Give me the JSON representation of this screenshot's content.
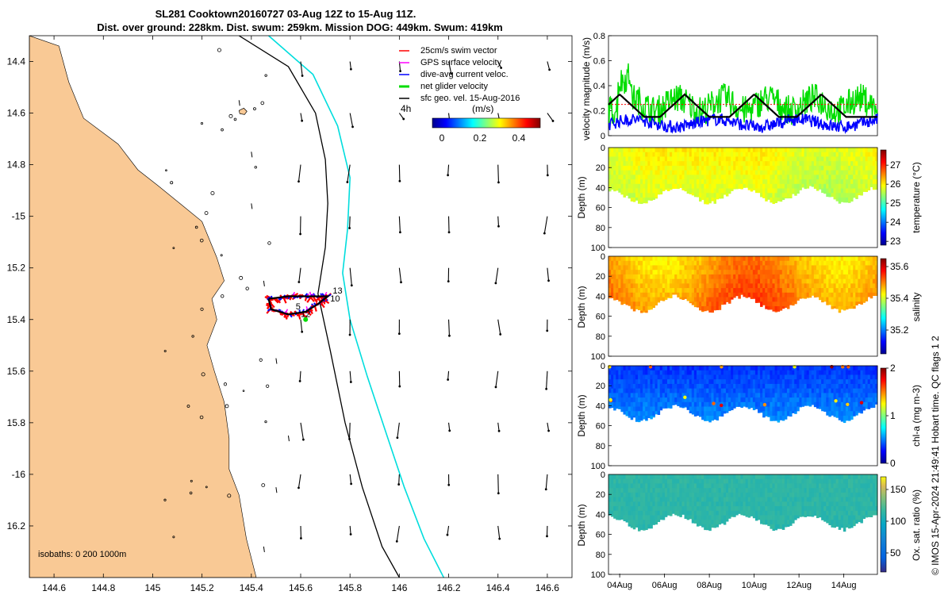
{
  "title": {
    "line1": "SL281 Cooktown20160727 03-Aug 12Z to 15-Aug 11Z.",
    "line2": "Dist. over ground: 228km. Dist. swum: 259km. Mission DOG: 449km. Swum: 419km"
  },
  "credit": "© IMOS 15-Apr-2024 21:49:41 Hobart time. QC flags 1  2",
  "colors": {
    "land": "#f9c995",
    "swim": "#ff0000",
    "gps": "#ff00ff",
    "current": "#0000ff",
    "net": "#00dd00",
    "isobath200": "#000000",
    "isobath1000": "#00dddd",
    "track": "#000000"
  },
  "chart_data": [
    {
      "type": "map",
      "name": "glider track map",
      "xlim": [
        144.5,
        146.7
      ],
      "ylim": [
        -16.4,
        -14.3
      ],
      "xticks": [
        144.6,
        144.8,
        145,
        145.2,
        145.4,
        145.6,
        145.8,
        146,
        146.2,
        146.4,
        146.6
      ],
      "xtick_labels": [
        "144.6",
        "144.8",
        "145",
        "145.2",
        "145.4",
        "145.6",
        "145.8",
        "146",
        "146.2",
        "146.4",
        "146.6"
      ],
      "yticks": [
        -14.4,
        -14.6,
        -14.8,
        -15,
        -15.2,
        -15.4,
        -15.6,
        -15.8,
        -16,
        -16.2
      ],
      "ytick_labels": [
        "14.4",
        "14.6",
        "14.8",
        "-15",
        "15.2",
        "15.4",
        "15.6",
        "15.8",
        "-16",
        "16.2"
      ],
      "legend": [
        {
          "label": "25cm/s swim vector",
          "color": "#ff0000"
        },
        {
          "label": "GPS surface velocity",
          "color": "#ff00ff"
        },
        {
          "label": "dive-avg current veloc.",
          "color": "#0000ff"
        },
        {
          "label": "net glider velocity",
          "color": "#00dd00"
        },
        {
          "label": "sfc geo. vel. 15-Aug-2016",
          "color": "#000000"
        }
      ],
      "scale_label": "4h",
      "colorbar": {
        "label": "(m/s)",
        "ticks": [
          0,
          0.2,
          0.4
        ],
        "tick_labels": [
          "0",
          "0.2",
          "0.4"
        ],
        "range": [
          0,
          0.5
        ]
      },
      "isobath_label": "isobaths: 0   200  1000m",
      "track_labels": [
        "13",
        "10",
        "12",
        "5"
      ],
      "track_loop": [
        [
          145.47,
          -15.32
        ],
        [
          145.55,
          -15.31
        ],
        [
          145.63,
          -15.31
        ],
        [
          145.71,
          -15.31
        ],
        [
          145.67,
          -15.34
        ],
        [
          145.62,
          -15.37
        ],
        [
          145.55,
          -15.38
        ],
        [
          145.48,
          -15.36
        ],
        [
          145.47,
          -15.32
        ]
      ],
      "isobath_200m": [
        [
          145.35,
          -14.3
        ],
        [
          145.55,
          -14.42
        ],
        [
          145.66,
          -14.6
        ],
        [
          145.7,
          -14.78
        ],
        [
          145.71,
          -14.95
        ],
        [
          145.7,
          -15.12
        ],
        [
          145.67,
          -15.3
        ],
        [
          145.72,
          -15.52
        ],
        [
          145.78,
          -15.8
        ],
        [
          145.85,
          -16.05
        ],
        [
          145.93,
          -16.28
        ],
        [
          146.0,
          -16.4
        ]
      ],
      "isobath_1000m": [
        [
          145.47,
          -14.3
        ],
        [
          145.65,
          -14.45
        ],
        [
          145.75,
          -14.65
        ],
        [
          145.8,
          -14.85
        ],
        [
          145.79,
          -15.05
        ],
        [
          145.77,
          -15.22
        ],
        [
          145.8,
          -15.4
        ],
        [
          145.87,
          -15.62
        ],
        [
          145.95,
          -15.85
        ],
        [
          146.02,
          -16.05
        ],
        [
          146.1,
          -16.25
        ],
        [
          146.18,
          -16.4
        ]
      ],
      "coast": [
        [
          144.5,
          -14.3
        ],
        [
          144.5,
          -14.3
        ],
        [
          144.62,
          -14.34
        ],
        [
          144.66,
          -14.48
        ],
        [
          144.72,
          -14.62
        ],
        [
          144.86,
          -14.72
        ],
        [
          144.94,
          -14.82
        ],
        [
          145.02,
          -14.88
        ],
        [
          145.11,
          -14.95
        ],
        [
          145.2,
          -15.02
        ],
        [
          145.26,
          -15.16
        ],
        [
          145.29,
          -15.25
        ],
        [
          145.24,
          -15.32
        ],
        [
          145.26,
          -15.4
        ],
        [
          145.22,
          -15.5
        ],
        [
          145.25,
          -15.6
        ],
        [
          145.29,
          -15.72
        ],
        [
          145.31,
          -15.86
        ],
        [
          145.31,
          -15.98
        ],
        [
          145.35,
          -16.08
        ],
        [
          145.38,
          -16.25
        ],
        [
          145.42,
          -16.4
        ],
        [
          144.5,
          -16.4
        ]
      ],
      "vector_grid": {
        "lons": [
          145.6,
          145.8,
          146.0,
          146.2,
          146.4,
          146.6
        ],
        "lats": [
          -14.4,
          -14.6,
          -14.8,
          -15.0,
          -15.2,
          -15.4,
          -15.6,
          -15.8,
          -16.0,
          -16.2
        ]
      }
    },
    {
      "type": "line",
      "name": "velocity magnitude",
      "ylabel": "velocity magnitude (m/s)",
      "ylim": [
        0,
        0.8
      ],
      "yticks": [
        0,
        0.2,
        0.4,
        0.6,
        0.8
      ],
      "ytick_labels": [
        "0",
        "0.2",
        "0.4",
        "0.6",
        "0.8"
      ],
      "xlim": [
        3.5,
        15.5
      ],
      "series": [
        {
          "name": "net glider velocity",
          "color": "#00dd00",
          "mean": 0.25,
          "amp": 0.12
        },
        {
          "name": "dive-avg current",
          "color": "#0000ff",
          "mean": 0.1,
          "amp": 0.05
        },
        {
          "name": "swim speed",
          "color": "#ff0000",
          "value": 0.25
        },
        {
          "name": "envelope",
          "color": "#000000",
          "min": 0.15,
          "max": 0.33,
          "peaks": [
            4.0,
            6.9,
            10.0,
            13.0
          ]
        }
      ]
    },
    {
      "type": "heatmap",
      "name": "temperature",
      "ylabel": "Depth (m)",
      "ylim": [
        0,
        100
      ],
      "yticks": [
        20,
        40,
        60,
        80,
        100
      ],
      "cbar_label": "temperature (°C)",
      "cbar_ticks": [
        23,
        24,
        25,
        26,
        27
      ],
      "cbar_range": [
        22.8,
        27.8
      ],
      "value_surface": 26.0,
      "value_deep": 25.7
    },
    {
      "type": "heatmap",
      "name": "salinity",
      "ylabel": "Depth (m)",
      "ylim": [
        0,
        100
      ],
      "yticks": [
        20,
        40,
        60,
        80,
        100
      ],
      "cbar_label": "salinity",
      "cbar_ticks": [
        35.2,
        35.4,
        35.6
      ],
      "cbar_tick_labels": [
        "35.2",
        "35.4",
        "35.6"
      ],
      "cbar_range": [
        35.05,
        35.65
      ],
      "value_surface": 35.47,
      "value_deep": 35.52
    },
    {
      "type": "heatmap",
      "name": "chl-a",
      "ylabel": "Depth (m)",
      "ylim": [
        0,
        100
      ],
      "yticks": [
        20,
        40,
        60,
        80,
        100
      ],
      "cbar_label": "chl-a (mg m-3)",
      "cbar_ticks": [
        0,
        1,
        2
      ],
      "cbar_range": [
        0,
        2
      ],
      "value_surface": 0.35,
      "value_deep": 0.55
    },
    {
      "type": "heatmap",
      "name": "oxygen saturation",
      "ylabel": "Depth (m)",
      "ylim": [
        0,
        100
      ],
      "yticks": [
        20,
        40,
        60,
        80,
        100
      ],
      "cbar_label": "Ox. sat. ratio (%)",
      "cbar_ticks": [
        50,
        100,
        150
      ],
      "cbar_range": [
        20,
        170
      ],
      "value_surface": 102,
      "value_deep": 100
    },
    {
      "type": "time_axis",
      "name": "shared date axis",
      "xlim": [
        3.5,
        15.5
      ],
      "xticks": [
        4,
        6,
        8,
        10,
        12,
        14
      ],
      "xtick_labels": [
        "04Aug",
        "06Aug",
        "08Aug",
        "10Aug",
        "12Aug",
        "14Aug"
      ],
      "seafloor_depth_m": [
        42,
        55,
        40,
        55,
        40,
        55,
        40,
        55,
        40
      ]
    }
  ]
}
